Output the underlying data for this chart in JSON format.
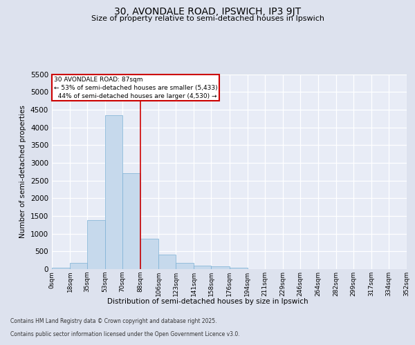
{
  "title_line1": "30, AVONDALE ROAD, IPSWICH, IP3 9JT",
  "title_line2": "Size of property relative to semi-detached houses in Ipswich",
  "xlabel": "Distribution of semi-detached houses by size in Ipswich",
  "ylabel": "Number of semi-detached properties",
  "property_label": "30 AVONDALE ROAD: 87sqm",
  "smaller_pct": 53,
  "smaller_count": 5433,
  "larger_pct": 44,
  "larger_count": 4530,
  "bin_edges": [
    0,
    18,
    35,
    53,
    70,
    88,
    106,
    123,
    141,
    158,
    176,
    194,
    211,
    229,
    246,
    264,
    282,
    299,
    317,
    334,
    352
  ],
  "bar_heights": [
    30,
    170,
    1380,
    4350,
    2700,
    860,
    400,
    170,
    100,
    75,
    30,
    0,
    0,
    0,
    0,
    0,
    0,
    0,
    0,
    0
  ],
  "bar_color": "#c6d9ec",
  "bar_edge_color": "#7aafd4",
  "vline_color": "#cc0000",
  "vline_x": 88,
  "annotation_box_edgecolor": "#cc0000",
  "background_color": "#dde2ee",
  "plot_bg_color": "#e8ecf6",
  "grid_color": "#ffffff",
  "ylim": [
    0,
    5500
  ],
  "yticks": [
    0,
    500,
    1000,
    1500,
    2000,
    2500,
    3000,
    3500,
    4000,
    4500,
    5000,
    5500
  ],
  "tick_labels": [
    "0sqm",
    "18sqm",
    "35sqm",
    "53sqm",
    "70sqm",
    "88sqm",
    "106sqm",
    "123sqm",
    "141sqm",
    "158sqm",
    "176sqm",
    "194sqm",
    "211sqm",
    "229sqm",
    "246sqm",
    "264sqm",
    "282sqm",
    "299sqm",
    "317sqm",
    "334sqm",
    "352sqm"
  ],
  "footer_line1": "Contains HM Land Registry data © Crown copyright and database right 2025.",
  "footer_line2": "Contains public sector information licensed under the Open Government Licence v3.0."
}
